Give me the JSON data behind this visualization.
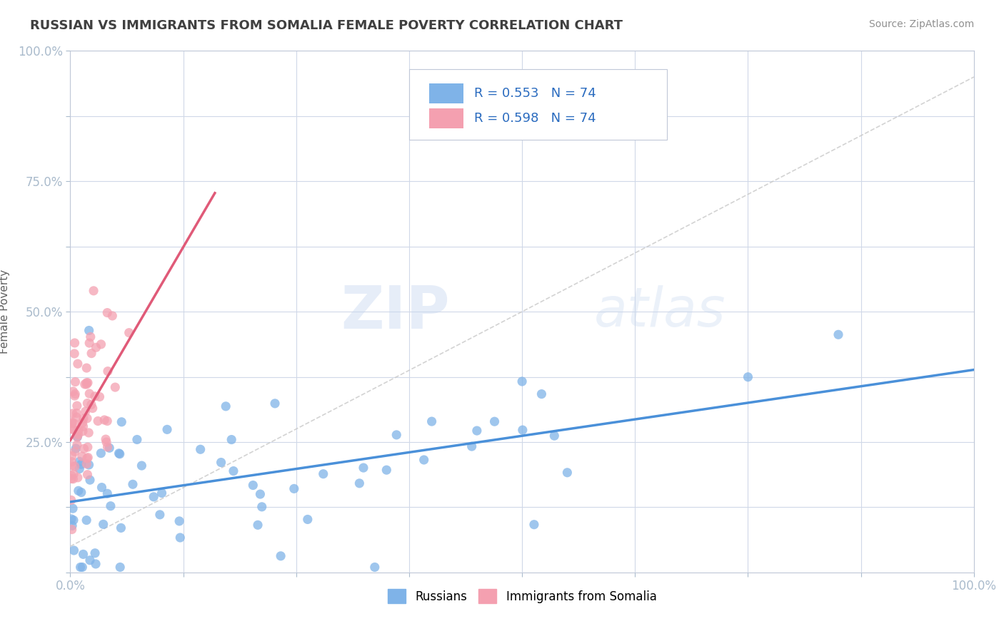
{
  "title": "RUSSIAN VS IMMIGRANTS FROM SOMALIA FEMALE POVERTY CORRELATION CHART",
  "source": "Source: ZipAtlas.com",
  "ylabel": "Female Poverty",
  "watermark_zip": "ZIP",
  "watermark_atlas": "atlas",
  "R_russian": 0.553,
  "R_somalia": 0.598,
  "N": 74,
  "xlim": [
    0.0,
    1.0
  ],
  "ylim": [
    0.0,
    1.0
  ],
  "color_russian": "#7fb3e8",
  "color_somalia": "#f4a0b0",
  "trend_russian": "#4a90d9",
  "trend_somalia": "#e05a78",
  "background_color": "#ffffff",
  "grid_color": "#d0d8e8",
  "title_color": "#404040",
  "source_color": "#909090",
  "axis_label_color": "#5599dd"
}
